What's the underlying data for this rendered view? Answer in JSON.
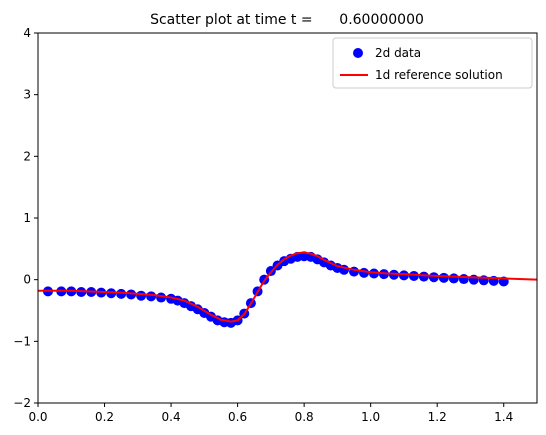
{
  "chart_data": {
    "type": "scatter",
    "title": "Scatter plot at time t =      0.60000000",
    "xlabel": "",
    "ylabel": "",
    "xlim": [
      0.0,
      1.5
    ],
    "ylim": [
      -2,
      4
    ],
    "xticks": [
      "0.0",
      "0.2",
      "0.4",
      "0.6",
      "0.8",
      "1.0",
      "1.2",
      "1.4"
    ],
    "yticks": [
      "−2",
      "−1",
      "0",
      "1",
      "2",
      "3",
      "4"
    ],
    "grid": false,
    "legend": "top-right",
    "series": [
      {
        "name": "2d data",
        "kind": "scatter",
        "color": "#0000ff",
        "x": [
          0.03,
          0.07,
          0.1,
          0.13,
          0.16,
          0.19,
          0.22,
          0.25,
          0.28,
          0.31,
          0.34,
          0.37,
          0.4,
          0.42,
          0.44,
          0.46,
          0.48,
          0.5,
          0.52,
          0.54,
          0.56,
          0.58,
          0.6,
          0.62,
          0.64,
          0.66,
          0.68,
          0.7,
          0.72,
          0.74,
          0.76,
          0.78,
          0.8,
          0.82,
          0.84,
          0.86,
          0.88,
          0.9,
          0.92,
          0.95,
          0.98,
          1.01,
          1.04,
          1.07,
          1.1,
          1.13,
          1.16,
          1.19,
          1.22,
          1.25,
          1.28,
          1.31,
          1.34,
          1.37,
          1.4
        ],
        "y": [
          -0.19,
          -0.19,
          -0.19,
          -0.2,
          -0.2,
          -0.21,
          -0.22,
          -0.23,
          -0.24,
          -0.26,
          -0.27,
          -0.29,
          -0.31,
          -0.34,
          -0.38,
          -0.43,
          -0.48,
          -0.54,
          -0.6,
          -0.66,
          -0.69,
          -0.7,
          -0.66,
          -0.55,
          -0.38,
          -0.19,
          0.0,
          0.14,
          0.23,
          0.3,
          0.34,
          0.37,
          0.38,
          0.37,
          0.33,
          0.28,
          0.23,
          0.19,
          0.16,
          0.13,
          0.11,
          0.1,
          0.09,
          0.08,
          0.07,
          0.06,
          0.05,
          0.04,
          0.03,
          0.02,
          0.01,
          0.0,
          -0.01,
          -0.02,
          -0.03
        ]
      },
      {
        "name": "1d reference solution",
        "kind": "line",
        "color": "#ff0000",
        "x": [
          0.0,
          0.05,
          0.1,
          0.15,
          0.2,
          0.25,
          0.3,
          0.35,
          0.4,
          0.44,
          0.48,
          0.52,
          0.55,
          0.58,
          0.6,
          0.62,
          0.64,
          0.66,
          0.68,
          0.7,
          0.72,
          0.74,
          0.76,
          0.78,
          0.8,
          0.82,
          0.84,
          0.86,
          0.88,
          0.9,
          0.95,
          1.0,
          1.05,
          1.1,
          1.2,
          1.3,
          1.4,
          1.5
        ],
        "y": [
          -0.18,
          -0.18,
          -0.18,
          -0.19,
          -0.2,
          -0.21,
          -0.23,
          -0.25,
          -0.29,
          -0.34,
          -0.44,
          -0.57,
          -0.65,
          -0.68,
          -0.66,
          -0.56,
          -0.39,
          -0.2,
          -0.02,
          0.12,
          0.24,
          0.33,
          0.39,
          0.43,
          0.44,
          0.42,
          0.38,
          0.32,
          0.27,
          0.22,
          0.16,
          0.12,
          0.1,
          0.09,
          0.06,
          0.04,
          0.02,
          0.0
        ]
      }
    ]
  }
}
